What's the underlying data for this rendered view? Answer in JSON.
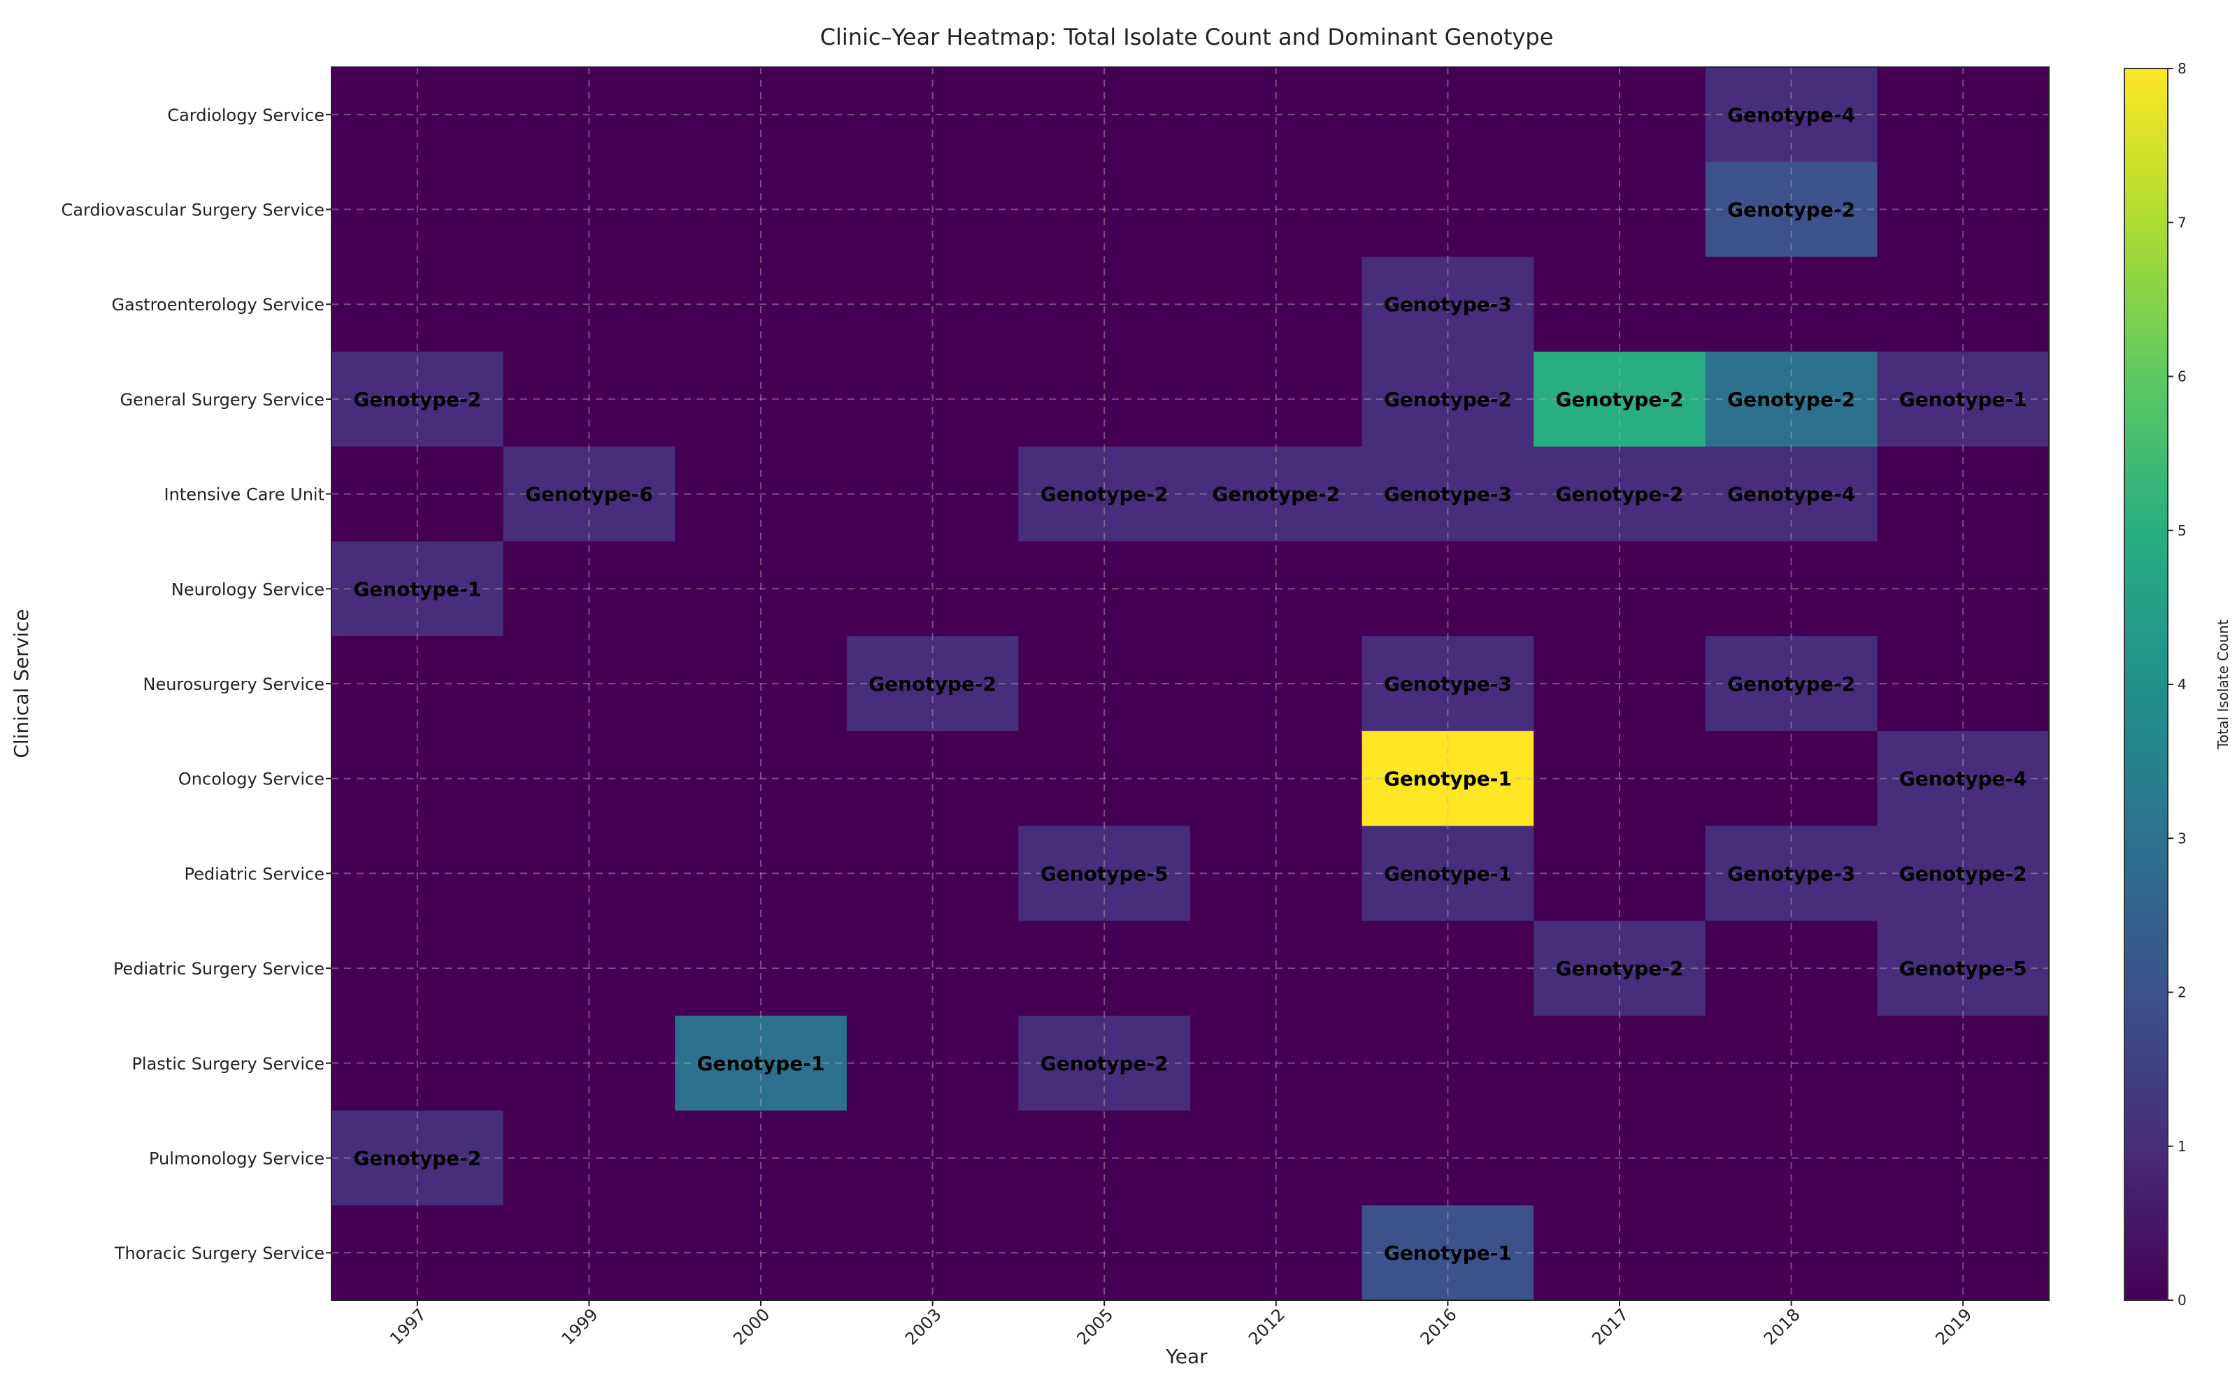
{
  "chart_data": {
    "type": "heatmap",
    "title": "Clinic–Year Heatmap: Total Isolate Count and Dominant Genotype",
    "xlabel": "Year",
    "ylabel": "Clinical Service",
    "colorbar_label": "Total Isolate Count",
    "colormap": "viridis",
    "value_range": [
      0,
      8
    ],
    "colorbar_ticks": [
      "0",
      "1",
      "2",
      "3",
      "4",
      "5",
      "6",
      "7",
      "8"
    ],
    "grid": true,
    "x_categories": [
      "1997",
      "1999",
      "2000",
      "2003",
      "2005",
      "2012",
      "2016",
      "2017",
      "2018",
      "2019"
    ],
    "y_categories": [
      "Cardiology Service",
      "Cardiovascular Surgery Service",
      "Gastroenterology Service",
      "General Surgery Service",
      "Intensive Care Unit",
      "Neurology Service",
      "Neurosurgery Service",
      "Oncology Service",
      "Pediatric Service",
      "Pediatric Surgery Service",
      "Plastic Surgery Service",
      "Pulmonology Service",
      "Thoracic Surgery Service"
    ],
    "values": [
      [
        0,
        0,
        0,
        0,
        0,
        0,
        0,
        0,
        1,
        0
      ],
      [
        0,
        0,
        0,
        0,
        0,
        0,
        0,
        0,
        2,
        0
      ],
      [
        0,
        0,
        0,
        0,
        0,
        0,
        1,
        0,
        0,
        0
      ],
      [
        1,
        0,
        0,
        0,
        0,
        0,
        1,
        5,
        3,
        1
      ],
      [
        0,
        1,
        0,
        0,
        1,
        1,
        1,
        1,
        1,
        0
      ],
      [
        1,
        0,
        0,
        0,
        0,
        0,
        0,
        0,
        0,
        0
      ],
      [
        0,
        0,
        0,
        1,
        0,
        0,
        1,
        0,
        1,
        0
      ],
      [
        0,
        0,
        0,
        0,
        0,
        0,
        8,
        0,
        0,
        1
      ],
      [
        0,
        0,
        0,
        0,
        1,
        0,
        1,
        0,
        1,
        1
      ],
      [
        0,
        0,
        0,
        0,
        0,
        0,
        0,
        1,
        0,
        1
      ],
      [
        0,
        0,
        3,
        0,
        1,
        0,
        0,
        0,
        0,
        0
      ],
      [
        1,
        0,
        0,
        0,
        0,
        0,
        0,
        0,
        0,
        0
      ],
      [
        0,
        0,
        0,
        0,
        0,
        0,
        2,
        0,
        0,
        0
      ]
    ],
    "annotations": [
      [
        "",
        "",
        "",
        "",
        "",
        "",
        "",
        "",
        "Genotype-4",
        ""
      ],
      [
        "",
        "",
        "",
        "",
        "",
        "",
        "",
        "",
        "Genotype-2",
        ""
      ],
      [
        "",
        "",
        "",
        "",
        "",
        "",
        "Genotype-3",
        "",
        "",
        ""
      ],
      [
        "Genotype-2",
        "",
        "",
        "",
        "",
        "",
        "Genotype-2",
        "Genotype-2",
        "Genotype-2",
        "Genotype-1"
      ],
      [
        "",
        "Genotype-6",
        "",
        "",
        "Genotype-2",
        "Genotype-2",
        "Genotype-3",
        "Genotype-2",
        "Genotype-4",
        ""
      ],
      [
        "Genotype-1",
        "",
        "",
        "",
        "",
        "",
        "",
        "",
        "",
        ""
      ],
      [
        "",
        "",
        "",
        "Genotype-2",
        "",
        "",
        "Genotype-3",
        "",
        "Genotype-2",
        ""
      ],
      [
        "",
        "",
        "",
        "",
        "",
        "",
        "Genotype-1",
        "",
        "",
        "Genotype-4"
      ],
      [
        "",
        "",
        "",
        "",
        "Genotype-5",
        "",
        "Genotype-1",
        "",
        "Genotype-3",
        "Genotype-2"
      ],
      [
        "",
        "",
        "",
        "",
        "",
        "",
        "",
        "Genotype-2",
        "",
        "Genotype-5"
      ],
      [
        "",
        "",
        "Genotype-1",
        "",
        "Genotype-2",
        "",
        "",
        "",
        "",
        ""
      ],
      [
        "Genotype-2",
        "",
        "",
        "",
        "",
        "",
        "",
        "",
        "",
        ""
      ],
      [
        "",
        "",
        "",
        "",
        "",
        "",
        "Genotype-1",
        "",
        "",
        ""
      ]
    ]
  }
}
